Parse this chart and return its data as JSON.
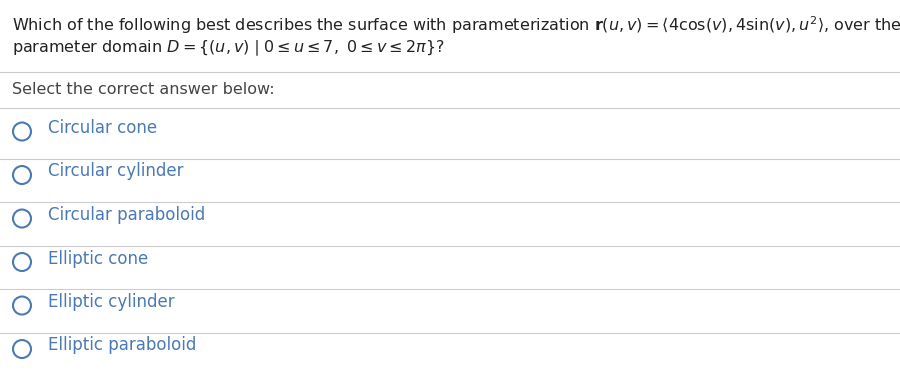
{
  "bg_color": "#ffffff",
  "text_color": "#222222",
  "option_color": "#4a7ab5",
  "select_color": "#444444",
  "divider_color": "#cccccc",
  "question_fontsize": 11.5,
  "option_fontsize": 12.0,
  "select_fontsize": 11.5,
  "circle_color": "#4a7ab5",
  "options": [
    "Circular cone",
    "Circular cylinder",
    "Circular paraboloid",
    "Elliptic cone",
    "Elliptic cylinder",
    "Elliptic paraboloid"
  ]
}
